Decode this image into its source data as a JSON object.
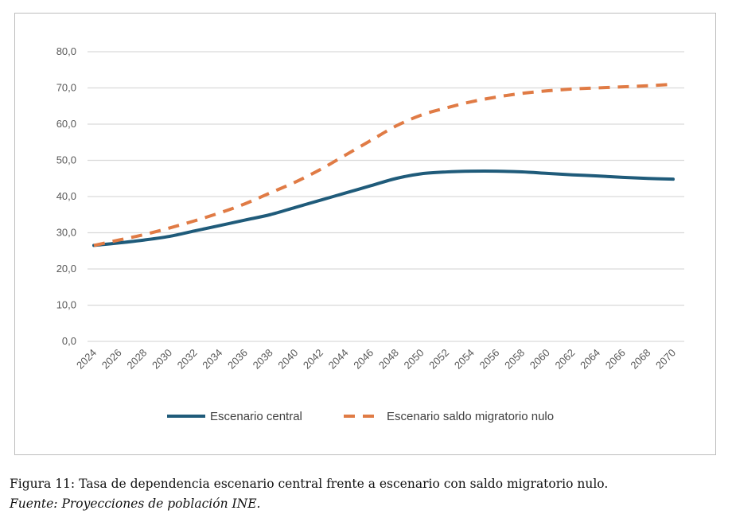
{
  "chart_data": {
    "type": "line",
    "title": "",
    "xlabel": "",
    "ylabel": "",
    "ylim": [
      0,
      80
    ],
    "yticks": [
      "0,0",
      "10,0",
      "20,0",
      "30,0",
      "40,0",
      "50,0",
      "60,0",
      "70,0",
      "80,0"
    ],
    "grid": true,
    "legend": "bottom",
    "categories": [
      "2024",
      "2026",
      "2028",
      "2030",
      "2032",
      "2034",
      "2036",
      "2038",
      "2040",
      "2042",
      "2044",
      "2046",
      "2048",
      "2050",
      "2052",
      "2054",
      "2056",
      "2058",
      "2060",
      "2062",
      "2064",
      "2066",
      "2068",
      "2070"
    ],
    "series": [
      {
        "name": "Escenario central",
        "color": "#1f5b7a",
        "style": "solid",
        "values": [
          26.5,
          27.2,
          28.0,
          29.0,
          30.5,
          32.0,
          33.5,
          35.0,
          37.0,
          39.0,
          41.0,
          43.0,
          45.0,
          46.3,
          46.8,
          47.0,
          47.0,
          46.8,
          46.4,
          46.0,
          45.7,
          45.3,
          45.0,
          44.8
        ]
      },
      {
        "name": "Escenario saldo migratorio nulo",
        "color": "#e07b45",
        "style": "dashed",
        "values": [
          26.5,
          28.0,
          29.5,
          31.3,
          33.3,
          35.5,
          38.0,
          41.0,
          44.0,
          47.5,
          51.5,
          55.5,
          59.5,
          62.5,
          64.5,
          66.2,
          67.5,
          68.5,
          69.2,
          69.7,
          70.0,
          70.3,
          70.6,
          71.0
        ]
      }
    ]
  },
  "caption": {
    "text": "Figura 11: Tasa de dependencia escenario central frente a escenario con saldo migratorio nulo.",
    "source": "Fuente: Proyecciones de población INE."
  }
}
